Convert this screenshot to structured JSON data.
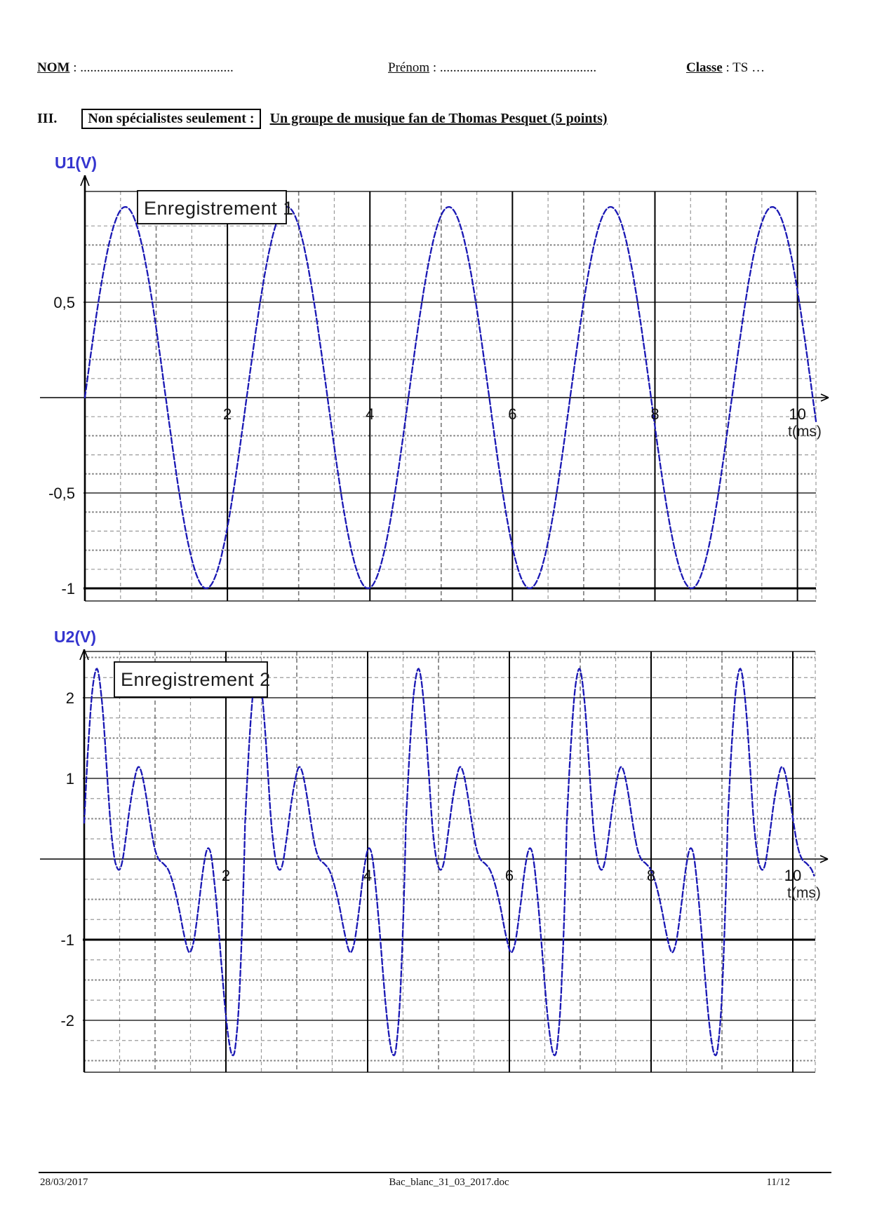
{
  "header": {
    "nom_label": "NOM",
    "nom_dots": " : ..............................................",
    "prenom_label": "Prénom",
    "prenom_dots": " : ...............................................",
    "classe_label": "Classe",
    "classe_value": " : TS …"
  },
  "section": {
    "numeral": "III.",
    "boxed": "Non spécialistes seulement :",
    "title": "Un groupe de musique fan de Thomas Pesquet (5 points)"
  },
  "footer": {
    "date": "28/03/2017",
    "filename": "Bac_blanc_31_03_2017.doc",
    "page": "11/12"
  },
  "colors": {
    "curve_blue": "#1a18b4",
    "label_blue": "#3535cf"
  },
  "chart_data": [
    {
      "type": "line",
      "id": "enregistrement1",
      "box_label": "Enregistrement 1",
      "ylabel": "U1(V)",
      "xlabel": "t(ms)",
      "waveform": "sine",
      "amplitude_V": 1.0,
      "period_ms": 2.27,
      "t_start_ms": 0,
      "t_end_ms": 10.26,
      "x_ticks": [
        {
          "v": 2,
          "label": "2"
        },
        {
          "v": 4,
          "label": "4"
        },
        {
          "v": 6,
          "label": "6"
        },
        {
          "v": 8,
          "label": "8"
        },
        {
          "v": 10,
          "label": "10"
        }
      ],
      "y_ticks": [
        {
          "v": 0.5,
          "label": "0,5",
          "thick": false
        },
        {
          "v": -0.5,
          "label": "-0,5",
          "thick": false
        },
        {
          "v": -1,
          "label": "-1",
          "thick": true
        }
      ],
      "minor_x_step_ms": 0.5,
      "minor_y_step_V": 0.1,
      "ylim": [
        -1.07,
        1.08
      ],
      "grid": true,
      "legend_position": "top-left-box"
    },
    {
      "type": "line",
      "id": "enregistrement2",
      "box_label": "Enregistrement 2",
      "ylabel": "U2(V)",
      "xlabel": "t(ms)",
      "waveform": "periodic_samples",
      "period_ms": 2.27,
      "t_start_ms": 0,
      "t_end_ms": 10.3,
      "samples_one_period_t_ms_u_V": [
        [
          0.0,
          0.45
        ],
        [
          0.05,
          1.3
        ],
        [
          0.1,
          1.95
        ],
        [
          0.14,
          2.25
        ],
        [
          0.18,
          2.36
        ],
        [
          0.22,
          2.2
        ],
        [
          0.27,
          1.75
        ],
        [
          0.32,
          1.1
        ],
        [
          0.37,
          0.45
        ],
        [
          0.42,
          0.05
        ],
        [
          0.46,
          -0.1
        ],
        [
          0.5,
          -0.13
        ],
        [
          0.54,
          -0.02
        ],
        [
          0.59,
          0.28
        ],
        [
          0.65,
          0.68
        ],
        [
          0.71,
          0.99
        ],
        [
          0.76,
          1.14
        ],
        [
          0.81,
          1.07
        ],
        [
          0.87,
          0.8
        ],
        [
          0.93,
          0.45
        ],
        [
          0.99,
          0.15
        ],
        [
          1.05,
          0.0
        ],
        [
          1.12,
          -0.06
        ],
        [
          1.19,
          -0.14
        ],
        [
          1.26,
          -0.32
        ],
        [
          1.33,
          -0.58
        ],
        [
          1.4,
          -0.9
        ],
        [
          1.46,
          -1.12
        ],
        [
          1.5,
          -1.15
        ],
        [
          1.55,
          -1.0
        ],
        [
          1.61,
          -0.62
        ],
        [
          1.67,
          -0.18
        ],
        [
          1.72,
          0.08
        ],
        [
          1.76,
          0.13
        ],
        [
          1.8,
          0.0
        ],
        [
          1.85,
          -0.4
        ],
        [
          1.9,
          -0.9
        ],
        [
          1.95,
          -1.45
        ],
        [
          2.0,
          -1.95
        ],
        [
          2.05,
          -2.3
        ],
        [
          2.09,
          -2.43
        ],
        [
          2.13,
          -2.35
        ],
        [
          2.18,
          -1.85
        ],
        [
          2.22,
          -1.05
        ],
        [
          2.25,
          -0.25
        ],
        [
          2.27,
          0.45
        ]
      ],
      "peak_V": 2.36,
      "deep_min_V": -2.43,
      "x_ticks": [
        {
          "v": 2,
          "label": "2"
        },
        {
          "v": 4,
          "label": "4"
        },
        {
          "v": 6,
          "label": "6"
        },
        {
          "v": 8,
          "label": "8"
        },
        {
          "v": 10,
          "label": "10"
        }
      ],
      "y_ticks": [
        {
          "v": 2,
          "label": "2",
          "thick": false
        },
        {
          "v": 1,
          "label": "1",
          "thick": false
        },
        {
          "v": -1,
          "label": "-1",
          "thick": true
        },
        {
          "v": -2,
          "label": "-2",
          "thick": false
        }
      ],
      "minor_x_step_ms": 0.5,
      "minor_y_step_V": 0.25,
      "ylim": [
        -2.64,
        2.57
      ],
      "grid": true,
      "legend_position": "top-left-box"
    }
  ]
}
